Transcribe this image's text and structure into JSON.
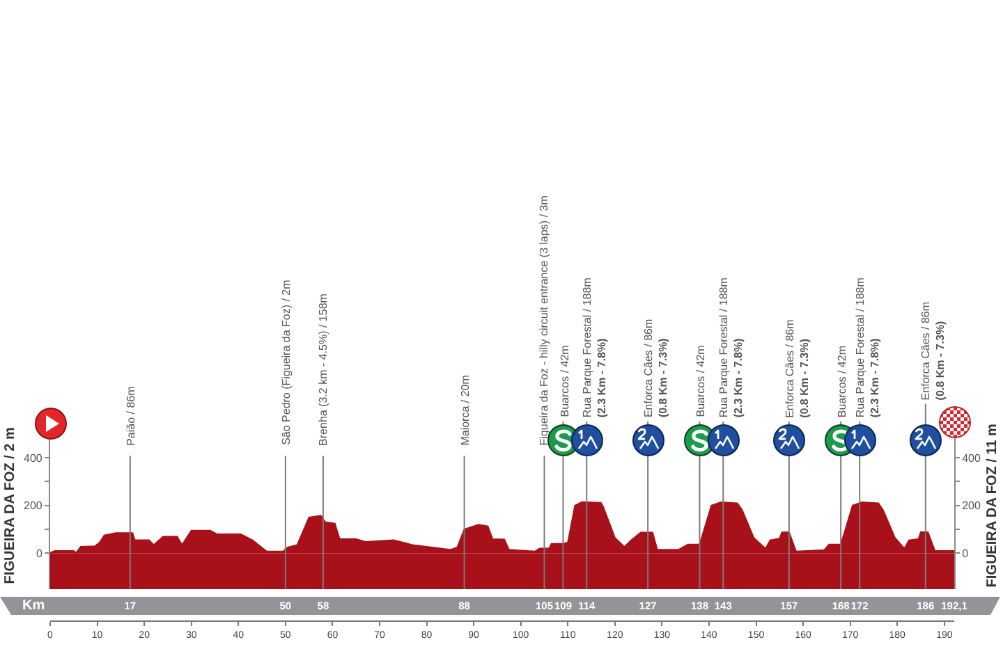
{
  "chart_data": {
    "type": "area",
    "x": [
      0,
      1,
      5,
      5.5,
      6.5,
      9.5,
      10.5,
      11.5,
      14,
      17.5,
      18,
      21,
      22,
      24,
      27,
      28,
      30,
      34,
      35.5,
      40.5,
      43,
      46,
      49.5,
      50.5,
      52.5,
      55,
      57.5,
      58.5,
      60.5,
      61.5,
      65,
      67,
      73,
      77,
      85,
      86.5,
      88,
      91,
      93,
      94,
      96.5,
      97.5,
      103,
      104,
      106,
      106.5,
      109,
      110,
      111.5,
      113,
      117,
      117.5,
      120,
      122,
      123.5,
      125.5,
      128,
      129,
      133.5,
      135.5,
      138,
      140.5,
      142.5,
      146,
      147,
      149.5,
      152,
      153,
      155,
      155.5,
      157,
      158.5,
      164.5,
      165.5,
      168,
      170.5,
      172.5,
      176,
      177,
      179.5,
      181.5,
      182.5,
      184.5,
      185,
      186.5,
      188,
      192.1
    ],
    "values": [
      2,
      10,
      10,
      2,
      28,
      30,
      45,
      75,
      85,
      85,
      55,
      55,
      35,
      70,
      70,
      35,
      95,
      95,
      80,
      80,
      55,
      8,
      8,
      25,
      35,
      150,
      158,
      130,
      125,
      60,
      60,
      48,
      55,
      35,
      15,
      25,
      100,
      120,
      113,
      60,
      58,
      15,
      8,
      20,
      20,
      40,
      40,
      45,
      200,
      215,
      212,
      195,
      65,
      27,
      55,
      87,
      87,
      15,
      15,
      37,
      37,
      200,
      214,
      210,
      183,
      65,
      20,
      55,
      62,
      88,
      88,
      8,
      14,
      37,
      37,
      200,
      214,
      210,
      180,
      65,
      20,
      55,
      60,
      89,
      89,
      10,
      10
    ],
    "color": "#a8101a",
    "xlim": [
      0,
      192.1
    ],
    "xticks": [
      0,
      10,
      20,
      30,
      40,
      50,
      60,
      70,
      80,
      90,
      100,
      110,
      120,
      130,
      140,
      150,
      160,
      170,
      180,
      190
    ],
    "x2lim": [
      0,
      192.1
    ],
    "x2ticks": [
      17,
      50,
      58,
      88,
      105,
      109,
      114,
      127,
      138,
      143,
      157,
      168,
      172,
      186,
      {
        "value": 192.1,
        "label": "192,1"
      }
    ],
    "x2label": "Km",
    "ylim": [
      -150,
      550
    ],
    "yticks": [
      0,
      {
        "value": 100,
        "label": null
      },
      200,
      {
        "value": 300,
        "label": null
      },
      400
    ],
    "y2lim": [
      -150,
      550
    ],
    "y2ticks": [
      0,
      {
        "value": 100,
        "label": null
      },
      200,
      {
        "value": 300,
        "label": null
      },
      400
    ],
    "ylabel": "FIGUEIRA DA FOZ / 2 m",
    "y2label": "FIGUEIRA DA FOZ / 11 m",
    "bands": [
      {
        "axis": "y",
        "from": -150,
        "to": 0,
        "color": "#a8101a"
      }
    ],
    "ref_lines": [
      {
        "axis": "x",
        "value": 17,
        "label": "Paião / 86m"
      },
      {
        "axis": "x",
        "value": 50,
        "label": "São Pedro (Figueira da Foz) / 2m"
      },
      {
        "axis": "x",
        "value": 58,
        "label": "Brenha (3.2 km - 4.5%) / 158m"
      },
      {
        "axis": "x",
        "value": 88,
        "label": "Maiorca / 20m"
      },
      {
        "axis": "x",
        "value": 105,
        "label": "Figueira da Foz - hilly circuit entrance (3 laps) / 3m"
      },
      {
        "axis": "x",
        "value": 109,
        "label": "Buarcos / 42m"
      },
      {
        "axis": "x",
        "value": 114,
        "label": "Rua Parque Forestal / 188m\n(2.3 Km - 7.8%)"
      },
      {
        "axis": "x",
        "value": 127,
        "label": "Enforca Cães / 86m\n(0.8 Km - 7.3%)"
      },
      {
        "axis": "x",
        "value": 138,
        "label": "Buarcos / 42m"
      },
      {
        "axis": "x",
        "value": 143,
        "label": "Rua Parque Forestal / 188m\n(2.3 Km - 7.8%)"
      },
      {
        "axis": "x",
        "value": 157,
        "label": "Enforca Cães / 86m\n(0.8 Km - 7.3%)"
      },
      {
        "axis": "x",
        "value": 168,
        "label": "Buarcos / 42m"
      },
      {
        "axis": "x",
        "value": 172,
        "label": "Rua Parque Forestal / 188m\n(2.3 Km - 7.8%)"
      },
      {
        "axis": "x",
        "value": 186,
        "label": "Enforca Cães / 86m\n(0.8 Km - 7.3%)"
      }
    ]
  }
}
